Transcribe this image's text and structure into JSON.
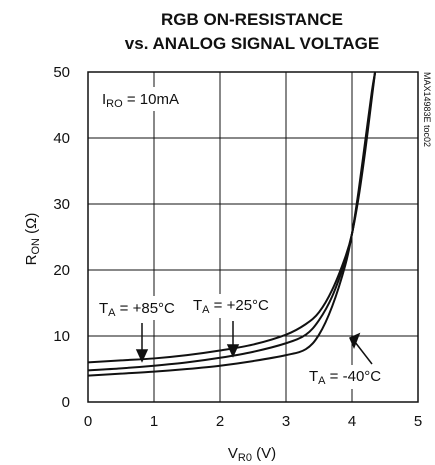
{
  "chart_data": {
    "type": "line",
    "title": [
      "RGB ON-RESISTANCE",
      "vs. ANALOG SIGNAL VOLTAGE"
    ],
    "xlabel": {
      "main": "V",
      "sub": "R0",
      "unit": " (V)"
    },
    "ylabel": {
      "main": "R",
      "sub": "ON",
      "unit": " (Ω)"
    },
    "xlim": [
      0,
      5
    ],
    "ylim": [
      0,
      50
    ],
    "xticks": [
      0,
      1,
      2,
      3,
      4,
      5
    ],
    "yticks": [
      0,
      10,
      20,
      30,
      40,
      50
    ],
    "grid": true,
    "annotations": {
      "condition": {
        "main": "I",
        "sub": "RO",
        "rest": " = 10mA"
      },
      "series_labels": [
        {
          "main": "T",
          "sub": "A",
          "rest": " = +85°C"
        },
        {
          "main": "T",
          "sub": "A",
          "rest": " = +25°C"
        },
        {
          "main": "T",
          "sub": "A",
          "rest": " = -40°C"
        }
      ],
      "side_code": "MAX14983E toc02"
    },
    "series": [
      {
        "x": [
          0,
          0.5,
          1.0,
          1.5,
          2.0,
          2.5,
          3.0,
          3.3,
          3.5,
          3.7,
          3.9,
          4.0,
          4.1,
          4.2,
          4.3,
          4.35
        ],
        "values": [
          6.0,
          6.3,
          6.6,
          7.1,
          7.8,
          8.7,
          10.2,
          11.8,
          13.6,
          17.0,
          22.0,
          25.5,
          31.0,
          38.0,
          46.0,
          50.0
        ]
      },
      {
        "x": [
          0,
          0.5,
          1.0,
          1.5,
          2.0,
          2.5,
          3.0,
          3.3,
          3.5,
          3.7,
          3.9,
          4.0,
          4.1,
          4.2,
          4.3,
          4.35
        ],
        "values": [
          4.8,
          5.1,
          5.5,
          6.0,
          6.7,
          7.6,
          8.9,
          10.2,
          12.4,
          16.0,
          21.5,
          25.5,
          31.5,
          38.5,
          46.5,
          50.0
        ]
      },
      {
        "x": [
          0,
          0.5,
          1.0,
          1.5,
          2.0,
          2.5,
          3.0,
          3.3,
          3.5,
          3.7,
          3.9,
          4.0,
          4.1,
          4.2,
          4.3,
          4.35
        ],
        "values": [
          4.0,
          4.3,
          4.6,
          5.0,
          5.5,
          6.2,
          7.1,
          8.0,
          10.2,
          14.5,
          20.8,
          25.5,
          32.0,
          39.5,
          47.0,
          50.0
        ]
      }
    ]
  }
}
